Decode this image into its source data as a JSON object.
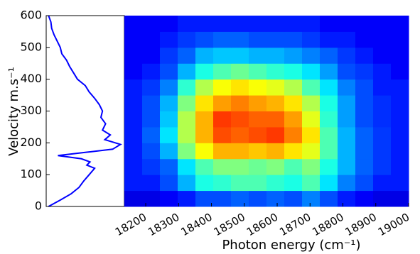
{
  "chart_data": [
    {
      "type": "line",
      "ylabel": "Velocity m.s⁻¹",
      "color": "#0000ff",
      "x": [
        0,
        20,
        40,
        60,
        80,
        100,
        120,
        130,
        140,
        150,
        160,
        170,
        180,
        195,
        210,
        225,
        240,
        260,
        280,
        300,
        320,
        340,
        360,
        380,
        400,
        420,
        440,
        460,
        480,
        500,
        520,
        540,
        560,
        580,
        600
      ],
      "values": [
        0.03,
        0.18,
        0.32,
        0.42,
        0.48,
        0.55,
        0.62,
        0.52,
        0.56,
        0.45,
        0.15,
        0.5,
        0.85,
        0.95,
        0.75,
        0.82,
        0.72,
        0.76,
        0.7,
        0.72,
        0.68,
        0.62,
        0.55,
        0.5,
        0.4,
        0.35,
        0.3,
        0.26,
        0.2,
        0.18,
        0.14,
        0.1,
        0.07,
        0.06,
        0.03
      ],
      "xlim": [
        0,
        1
      ],
      "ylim": [
        0,
        600
      ],
      "yticks": [
        0,
        100,
        200,
        300,
        400,
        500,
        600
      ]
    },
    {
      "type": "heatmap",
      "xlabel": "Photon energy (cm⁻¹)",
      "colormap": "jet",
      "xlim": [
        18135,
        19000
      ],
      "xticks": [
        18200,
        18300,
        18400,
        18500,
        18600,
        18700,
        18800,
        18900,
        19000
      ],
      "ylim": [
        0,
        600
      ],
      "zlim": [
        0,
        1
      ],
      "z": [
        [
          0.1,
          0.1,
          0.12,
          0.15,
          0.2,
          0.2,
          0.22,
          0.2,
          0.22,
          0.2,
          0.25,
          0.2,
          0.15,
          0.12,
          0.1,
          0.1
        ],
        [
          0.15,
          0.15,
          0.2,
          0.3,
          0.4,
          0.42,
          0.45,
          0.45,
          0.42,
          0.4,
          0.45,
          0.35,
          0.25,
          0.2,
          0.15,
          0.15
        ],
        [
          0.15,
          0.18,
          0.22,
          0.35,
          0.45,
          0.5,
          0.5,
          0.48,
          0.5,
          0.45,
          0.5,
          0.4,
          0.3,
          0.22,
          0.18,
          0.15
        ],
        [
          0.15,
          0.2,
          0.3,
          0.5,
          0.62,
          0.7,
          0.7,
          0.68,
          0.7,
          0.65,
          0.6,
          0.45,
          0.3,
          0.22,
          0.18,
          0.15
        ],
        [
          0.15,
          0.22,
          0.35,
          0.55,
          0.7,
          0.8,
          0.78,
          0.8,
          0.82,
          0.75,
          0.65,
          0.45,
          0.3,
          0.22,
          0.18,
          0.15
        ],
        [
          0.15,
          0.2,
          0.32,
          0.55,
          0.7,
          0.82,
          0.8,
          0.78,
          0.78,
          0.72,
          0.6,
          0.42,
          0.28,
          0.2,
          0.17,
          0.15
        ],
        [
          0.15,
          0.2,
          0.3,
          0.5,
          0.65,
          0.72,
          0.75,
          0.72,
          0.7,
          0.65,
          0.55,
          0.4,
          0.28,
          0.2,
          0.17,
          0.15
        ],
        [
          0.15,
          0.18,
          0.25,
          0.42,
          0.55,
          0.62,
          0.65,
          0.62,
          0.6,
          0.55,
          0.45,
          0.35,
          0.25,
          0.2,
          0.15,
          0.15
        ],
        [
          0.12,
          0.15,
          0.2,
          0.3,
          0.4,
          0.45,
          0.48,
          0.45,
          0.42,
          0.4,
          0.35,
          0.28,
          0.2,
          0.18,
          0.15,
          0.12
        ],
        [
          0.12,
          0.12,
          0.18,
          0.22,
          0.3,
          0.32,
          0.32,
          0.3,
          0.3,
          0.28,
          0.25,
          0.22,
          0.18,
          0.15,
          0.12,
          0.12
        ],
        [
          0.12,
          0.12,
          0.15,
          0.18,
          0.2,
          0.22,
          0.22,
          0.2,
          0.2,
          0.2,
          0.18,
          0.15,
          0.15,
          0.12,
          0.12,
          0.12
        ],
        [
          0.12,
          0.12,
          0.12,
          0.15,
          0.15,
          0.15,
          0.15,
          0.15,
          0.15,
          0.15,
          0.15,
          0.12,
          0.12,
          0.12,
          0.12,
          0.12
        ]
      ]
    }
  ]
}
